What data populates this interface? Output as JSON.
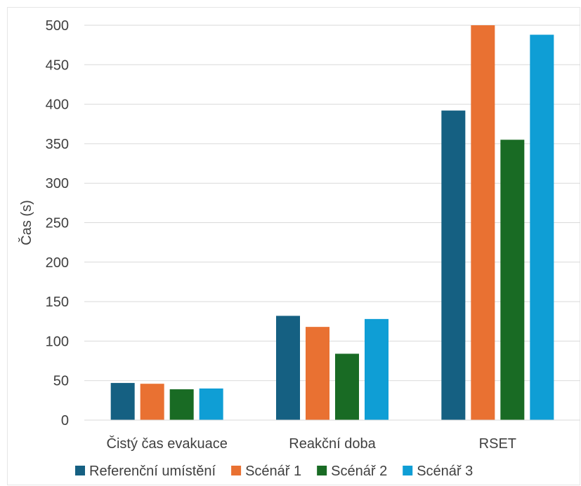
{
  "chart_data": {
    "type": "bar",
    "categories": [
      "Čistý čas evakuace",
      "Reakční doba",
      "RSET"
    ],
    "series": [
      {
        "name": "Referenční umístění",
        "color": "#156082",
        "values": [
          47,
          132,
          392
        ]
      },
      {
        "name": "Scénář 1",
        "color": "#e97132",
        "values": [
          46,
          118,
          500
        ]
      },
      {
        "name": "Scénář 2",
        "color": "#196b24",
        "values": [
          39,
          84,
          355
        ]
      },
      {
        "name": "Scénář 3",
        "color": "#0f9ed5",
        "values": [
          40,
          128,
          488
        ]
      }
    ],
    "title": "",
    "xlabel": "",
    "ylabel": "Čas (s)",
    "ylim": [
      0,
      500
    ],
    "yticks": [
      0,
      50,
      100,
      150,
      200,
      250,
      300,
      350,
      400,
      450,
      500
    ],
    "grid": true,
    "legend_position": "bottom"
  }
}
